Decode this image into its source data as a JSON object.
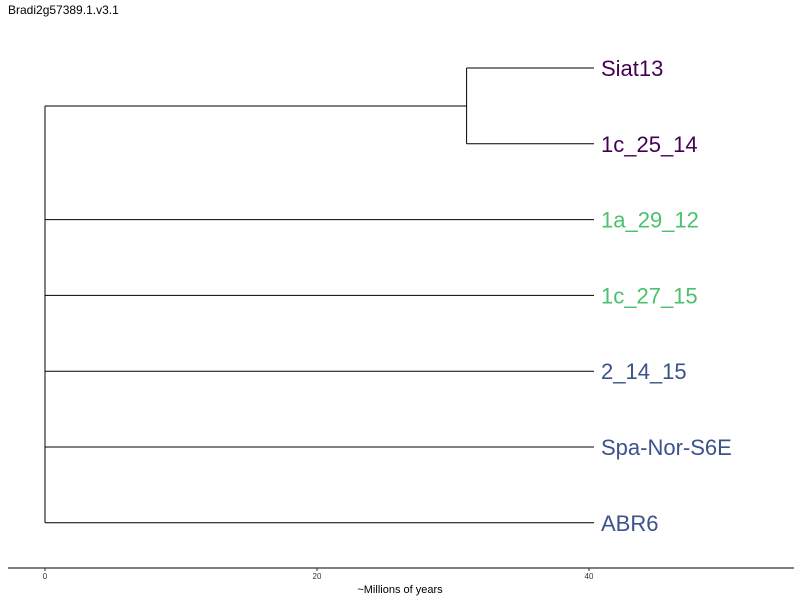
{
  "title": "Bradi2g57389.1.v3.1",
  "axis": {
    "label": "~Millions of years",
    "ticks": [
      {
        "value": 0,
        "label": "0"
      },
      {
        "value": 20,
        "label": "20"
      },
      {
        "value": 40,
        "label": "40"
      }
    ]
  },
  "tree": {
    "leaves": [
      {
        "name": "Siat13",
        "color": "#440154"
      },
      {
        "name": "1c_25_14",
        "color": "#440154"
      },
      {
        "name": "1a_29_12",
        "color": "#4ac16d"
      },
      {
        "name": "1c_27_15",
        "color": "#4ac16d"
      },
      {
        "name": "2_14_15",
        "color": "#3b528b"
      },
      {
        "name": "Spa-Nor-S6E",
        "color": "#3b528b"
      },
      {
        "name": "ABR6",
        "color": "#3b528b"
      }
    ],
    "clade_node_age": 31
  }
}
